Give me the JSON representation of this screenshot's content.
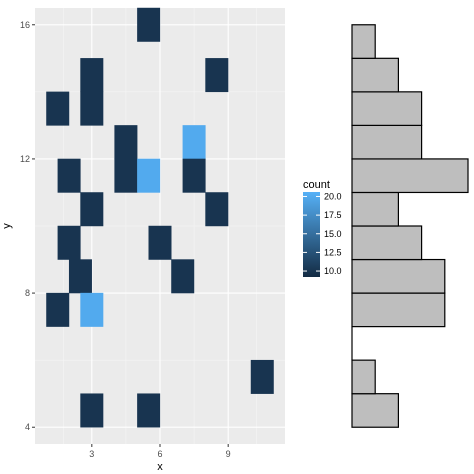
{
  "chart_data": [
    {
      "type": "heatmap",
      "xlabel": "x",
      "ylabel": "y",
      "xlim": [
        0.5,
        11.5
      ],
      "ylim": [
        3.5,
        16.5
      ],
      "x_ticks": [
        3,
        6,
        9
      ],
      "y_ticks": [
        4,
        8,
        12,
        16
      ],
      "grid": true,
      "legend": {
        "title": "count",
        "position": "right",
        "ticks": [
          "20.0",
          "17.5",
          "15.0",
          "12.5",
          "10.0"
        ],
        "range": [
          9.2,
          20.6
        ],
        "low_color": "#132b43",
        "high_color": "#56b1f7"
      },
      "cells": [
        {
          "x": 5.5,
          "y": 16,
          "count": 10
        },
        {
          "x": 3,
          "y": 14.5,
          "count": 10
        },
        {
          "x": 8.5,
          "y": 14.5,
          "count": 10
        },
        {
          "x": 1.5,
          "y": 13.5,
          "count": 10
        },
        {
          "x": 3,
          "y": 13.5,
          "count": 10
        },
        {
          "x": 4.5,
          "y": 12.5,
          "count": 10
        },
        {
          "x": 7.5,
          "y": 12.5,
          "count": 20
        },
        {
          "x": 2,
          "y": 11.5,
          "count": 10
        },
        {
          "x": 4.5,
          "y": 11.5,
          "count": 10
        },
        {
          "x": 5.5,
          "y": 11.5,
          "count": 20
        },
        {
          "x": 7.5,
          "y": 11.5,
          "count": 10
        },
        {
          "x": 3,
          "y": 10.5,
          "count": 10
        },
        {
          "x": 8.5,
          "y": 10.5,
          "count": 10
        },
        {
          "x": 2,
          "y": 9.5,
          "count": 10
        },
        {
          "x": 6,
          "y": 9.5,
          "count": 10
        },
        {
          "x": 2.5,
          "y": 8.5,
          "count": 10
        },
        {
          "x": 7,
          "y": 8.5,
          "count": 10
        },
        {
          "x": 1.5,
          "y": 7.5,
          "count": 10
        },
        {
          "x": 3,
          "y": 7.5,
          "count": 20
        },
        {
          "x": 10.5,
          "y": 5.5,
          "count": 10
        },
        {
          "x": 3,
          "y": 4.5,
          "count": 10
        },
        {
          "x": 5.5,
          "y": 4.5,
          "count": 10
        }
      ]
    },
    {
      "type": "bar",
      "orientation": "horizontal",
      "bar_fill": "#bebebe",
      "bar_outline": "#000000",
      "bins": [
        {
          "y0": 4,
          "y1": 5,
          "value": 2
        },
        {
          "y0": 5,
          "y1": 6,
          "value": 1
        },
        {
          "y0": 6,
          "y1": 7,
          "value": 0
        },
        {
          "y0": 7,
          "y1": 8,
          "value": 4
        },
        {
          "y0": 8,
          "y1": 9,
          "value": 4
        },
        {
          "y0": 9,
          "y1": 10,
          "value": 3
        },
        {
          "y0": 10,
          "y1": 11,
          "value": 2
        },
        {
          "y0": 11,
          "y1": 12,
          "value": 5
        },
        {
          "y0": 12,
          "y1": 13,
          "value": 3
        },
        {
          "y0": 13,
          "y1": 14,
          "value": 3
        },
        {
          "y0": 14,
          "y1": 15,
          "value": 2
        },
        {
          "y0": 15,
          "y1": 16,
          "value": 1
        }
      ],
      "xlim": [
        0,
        5
      ]
    }
  ]
}
